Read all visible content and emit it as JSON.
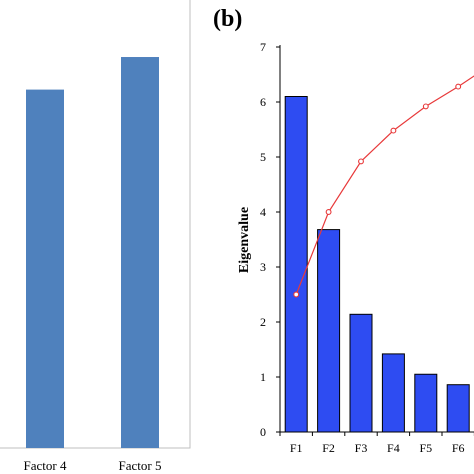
{
  "chart_data": [
    {
      "type": "bar",
      "categories": [
        "Factor 4",
        "Factor 5"
      ],
      "values": [
        0.88,
        0.96
      ],
      "ylim": [
        0,
        1.1
      ],
      "colors": {
        "bar": "#4f81bd",
        "frame": "#bfbfbf"
      }
    },
    {
      "type": "bar+line",
      "panel_label": "(b)",
      "ylabel": "Eigenvalue",
      "ylim": [
        0,
        7
      ],
      "yticks": [
        "0",
        "1",
        "2",
        "3",
        "4",
        "5",
        "6",
        "7"
      ],
      "categories": [
        "F1",
        "F2",
        "F3",
        "F4",
        "F5",
        "F6"
      ],
      "series": [
        {
          "values": [
            6.1,
            3.68,
            2.14,
            1.42,
            1.05,
            0.86
          ],
          "style": "bar",
          "color": "#2e4cf2"
        },
        {
          "values": [
            2.5,
            4.0,
            4.92,
            5.48,
            5.92,
            6.28
          ],
          "style": "line",
          "color": "#e8393a"
        }
      ]
    }
  ]
}
